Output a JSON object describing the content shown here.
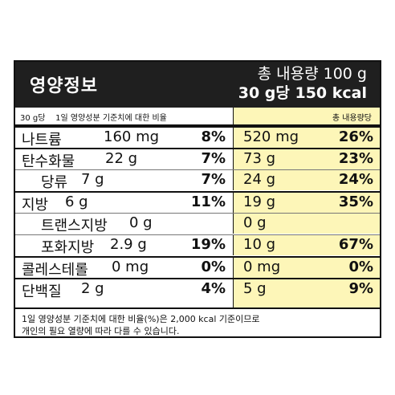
{
  "header": {
    "title": "영양정보",
    "total": "총 내용량 100 g",
    "per_serving": "30 g당 150 kcal"
  },
  "subheader": {
    "left": "30 g당    1일 영양성분 기준치에 대한 비율",
    "right": "총 내용량당"
  },
  "rows": [
    {
      "name": "나트륨",
      "amount": "160 mg",
      "serving_pct": "8%",
      "total_amount": "520 mg",
      "total_pct": "26%"
    },
    {
      "name": "탄수화물",
      "amount": "22 g",
      "serving_pct": "7%",
      "total_amount": "73 g",
      "total_pct": "23%"
    },
    {
      "name": "당류",
      "amount": "7 g",
      "serving_pct": "7%",
      "total_amount": "24 g",
      "total_pct": "24%"
    },
    {
      "name": "지방",
      "amount": "6 g",
      "serving_pct": "11%",
      "total_amount": "19 g",
      "total_pct": "35%"
    },
    {
      "name": "트랜스지방",
      "amount": "0 g",
      "serving_pct": "",
      "total_amount": "0 g",
      "total_pct": ""
    },
    {
      "name": "포화지방",
      "amount": "2.9 g",
      "serving_pct": "19%",
      "total_amount": "10 g",
      "total_pct": "67%"
    },
    {
      "name": "콜레스테롤",
      "amount": "0 mg",
      "serving_pct": "0%",
      "total_amount": "0 mg",
      "total_pct": "0%"
    },
    {
      "name": "단백질",
      "amount": "2 g",
      "serving_pct": "4%",
      "total_amount": "5 g",
      "total_pct": "9%"
    }
  ],
  "footer": {
    "line1": "1일 영양성분 기준치에 대한 비율(%)은 2,000 kcal 기준이므로",
    "line2": "개인의 필요 열량에 따라 다를 수 있습니다."
  },
  "colors": {
    "highlight": "#fdf6b8",
    "header_bg": "#1f1f1f"
  }
}
